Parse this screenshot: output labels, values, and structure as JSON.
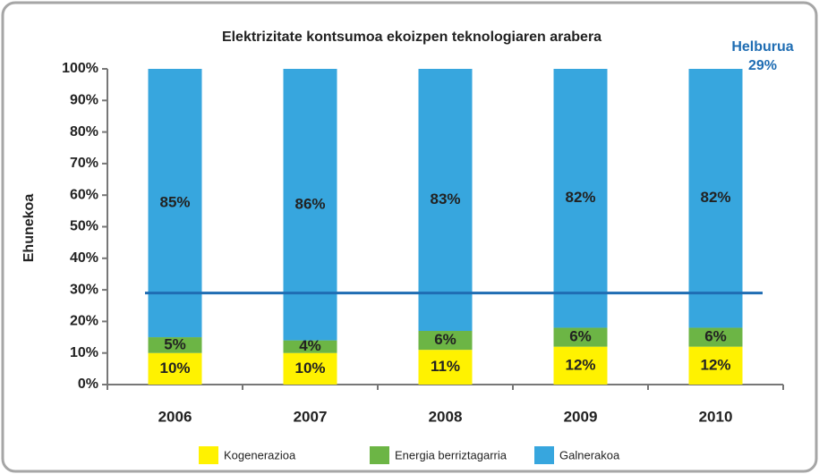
{
  "chart_data": {
    "type": "stacked_bar",
    "title": "Elektrizitate kontsumoa ekoizpen teknologiaren arabera",
    "y_label": "Ehunekoa",
    "categories": [
      "2006",
      "2007",
      "2008",
      "2009",
      "2010"
    ],
    "series": [
      {
        "name": "Kogenerazioa",
        "color": "#fff200",
        "values": [
          10,
          10,
          11,
          12,
          12
        ],
        "value_labels": [
          "10%",
          "10%",
          "11%",
          "12%",
          "12%"
        ]
      },
      {
        "name": "Energia berriztagarria",
        "color": "#6cb545",
        "values": [
          5,
          4,
          6,
          6,
          6
        ],
        "value_labels": [
          "5%",
          "4%",
          "6%",
          "6%",
          "6%"
        ]
      },
      {
        "name": "Galnerakoa",
        "color": "#37a6de",
        "values": [
          85,
          86,
          83,
          82,
          82
        ],
        "value_labels": [
          "85%",
          "86%",
          "83%",
          "82%",
          "82%"
        ]
      }
    ],
    "target": {
      "text": "Helburua",
      "value": 29,
      "label": "29%",
      "color": "#1f6db3"
    },
    "ylim": [
      0,
      100
    ],
    "yticks": [
      {
        "value": 0,
        "label": "0%"
      },
      {
        "value": 10,
        "label": "10%"
      },
      {
        "value": 20,
        "label": "20%"
      },
      {
        "value": 30,
        "label": "30%"
      },
      {
        "value": 40,
        "label": "40%"
      },
      {
        "value": 50,
        "label": "50%"
      },
      {
        "value": 60,
        "label": "60%"
      },
      {
        "value": 70,
        "label": "70%"
      },
      {
        "value": 80,
        "label": "80%"
      },
      {
        "value": 90,
        "label": "90%"
      },
      {
        "value": 100,
        "label": "100%"
      }
    ]
  }
}
